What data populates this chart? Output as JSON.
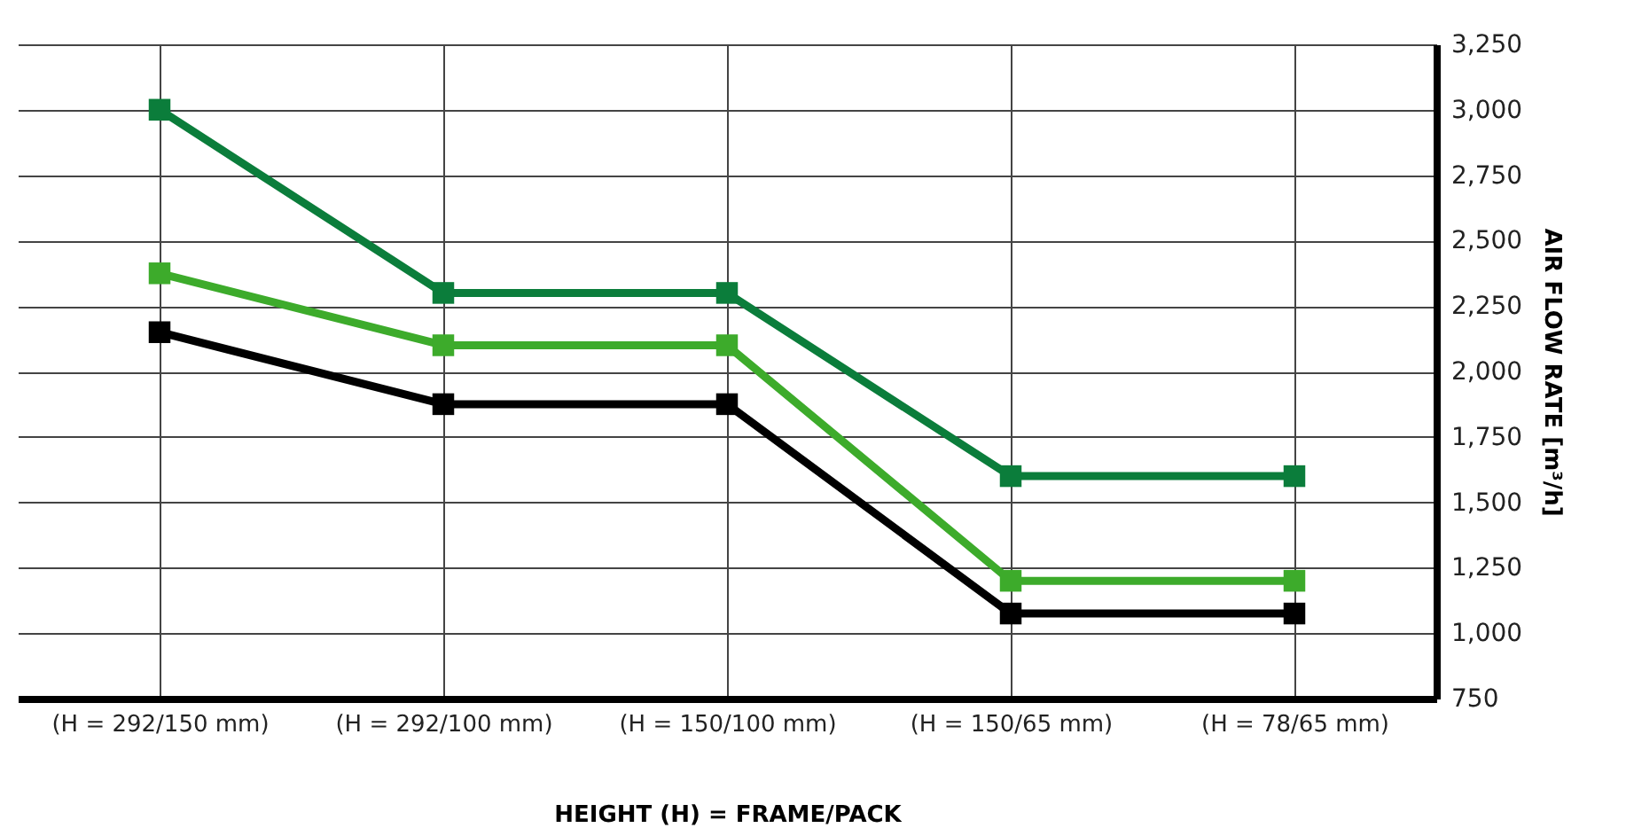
{
  "chart_data": {
    "type": "line",
    "xlabel": "HEIGHT (H) = FRAME/PACK",
    "ylabel": "AIR FLOW RATE [m³/h]",
    "categories": [
      "(H = 292/150 mm)",
      "(H = 292/100 mm)",
      "(H = 150/100 mm)",
      "(H = 150/65 mm)",
      "(H = 78/65 mm)"
    ],
    "series": [
      {
        "color": "#0b7d3b",
        "values": [
          3000,
          2300,
          2300,
          1600,
          1600
        ]
      },
      {
        "color": "#3dab2b",
        "values": [
          2375,
          2100,
          2100,
          1200,
          1200
        ]
      },
      {
        "color": "#000000",
        "values": [
          2150,
          1875,
          1875,
          1075,
          1075
        ]
      }
    ],
    "ylim": [
      750,
      3250
    ],
    "yticks": [
      {
        "value": 750,
        "label": "750"
      },
      {
        "value": 1000,
        "label": "1,000"
      },
      {
        "value": 1250,
        "label": "1,250"
      },
      {
        "value": 1500,
        "label": "1,500"
      },
      {
        "value": 1750,
        "label": "1,750"
      },
      {
        "value": 2000,
        "label": "2,000"
      },
      {
        "value": 2250,
        "label": "2,250"
      },
      {
        "value": 2500,
        "label": "2,500"
      },
      {
        "value": 2750,
        "label": "2,750"
      },
      {
        "value": 3000,
        "label": "3,000"
      },
      {
        "value": 3250,
        "label": "3,250"
      }
    ],
    "grid": true,
    "marker": "square",
    "line_style": "solid"
  }
}
